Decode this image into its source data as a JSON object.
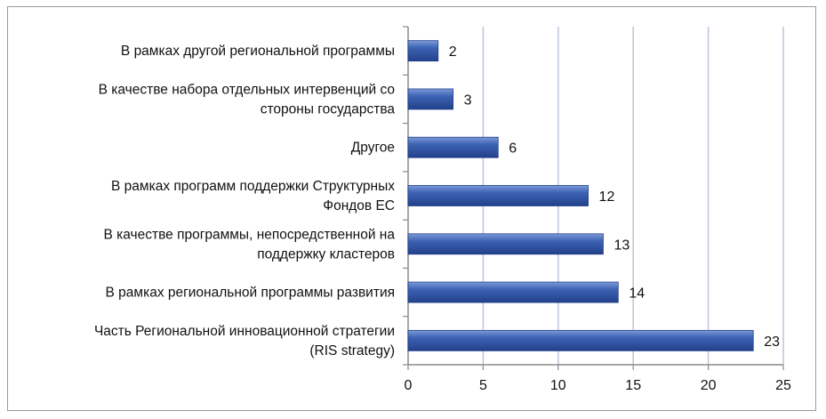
{
  "chart_data": {
    "type": "bar",
    "orientation": "horizontal",
    "categories": [
      [
        "В рамках другой региональной программы"
      ],
      [
        "В качестве набора отдельных интервенций со",
        "стороны государства"
      ],
      [
        "Другое"
      ],
      [
        "В рамках программ поддержки Структурных",
        "Фондов ЕС"
      ],
      [
        "В качестве программы, непосредственной на",
        "поддержку кластеров"
      ],
      [
        "В рамках региональной программы развития"
      ],
      [
        "Часть Региональной инновационной стратегии",
        "(RIS strategy)"
      ]
    ],
    "values": [
      2,
      3,
      6,
      12,
      13,
      14,
      23
    ],
    "xlim": [
      0,
      25
    ],
    "xticks": [
      "0",
      "5",
      "10",
      "15",
      "20",
      "25"
    ],
    "grid": true,
    "data_labels": true,
    "colors": {
      "bar": "#3d63b3",
      "bar_dark": "#23408a",
      "bar_light": "#7d9bd9",
      "grid": "#b9c6dd",
      "axis": "#8a8a8a"
    }
  }
}
